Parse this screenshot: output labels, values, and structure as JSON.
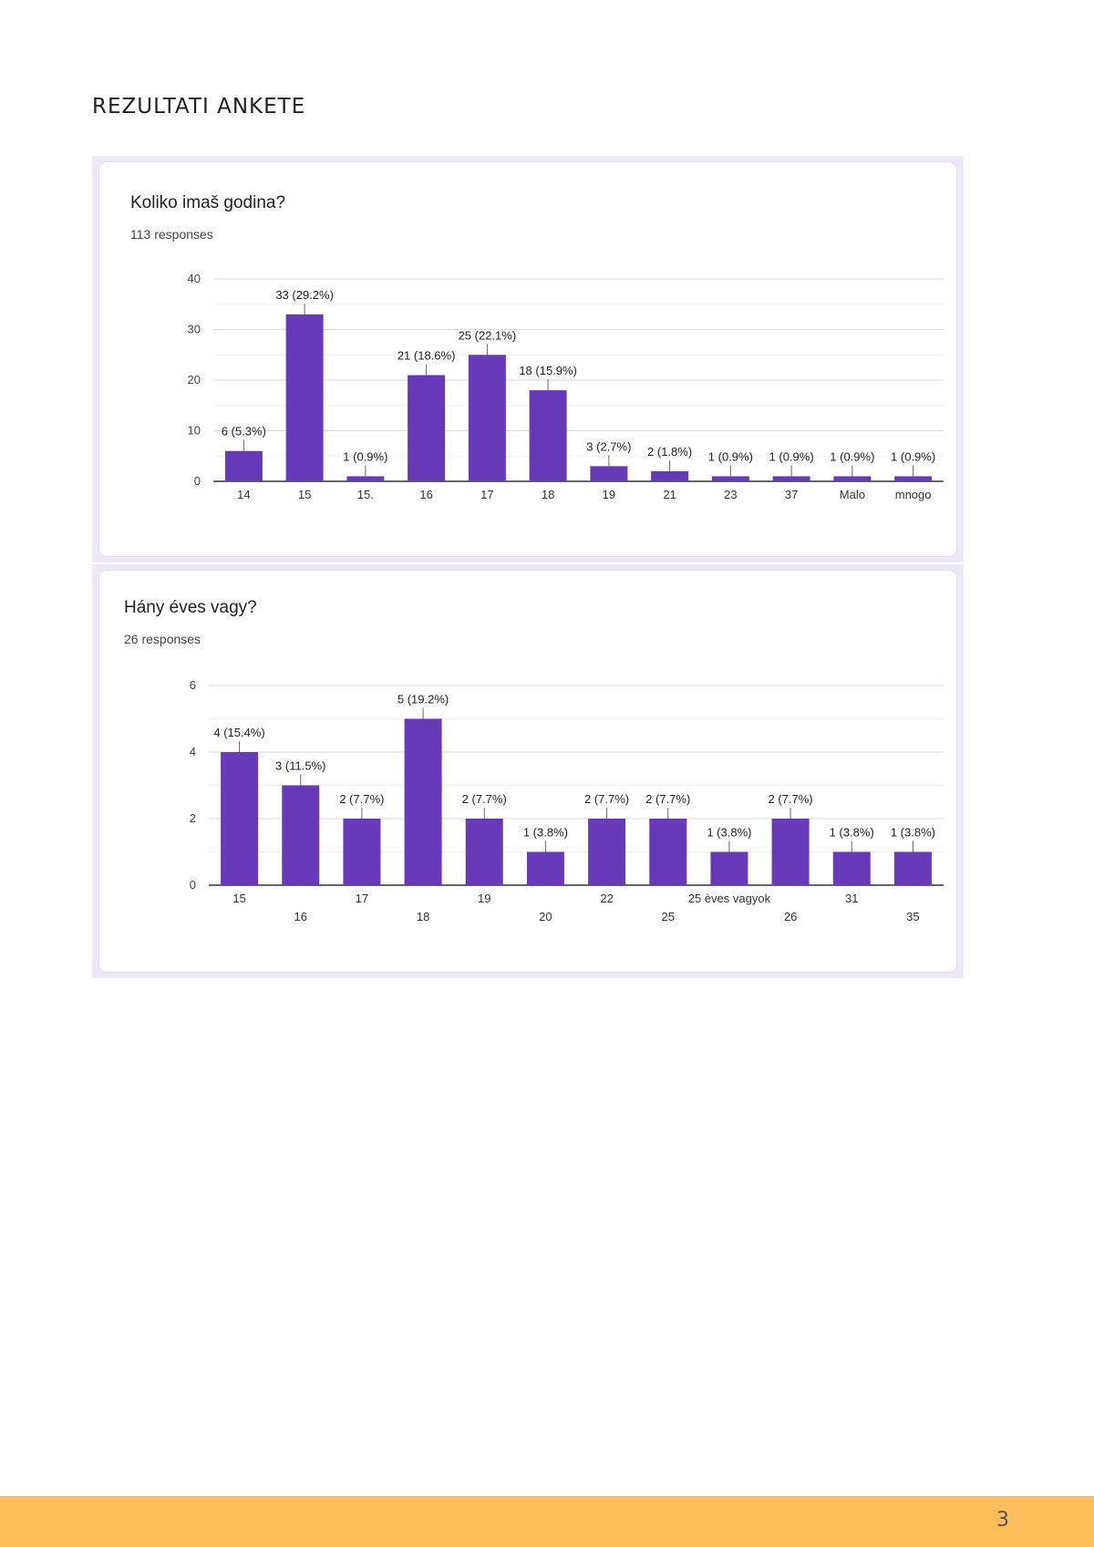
{
  "page": {
    "heading": "REZULTATI ANKETE",
    "page_number": "3",
    "accent_color": "#673ab7",
    "footer_color": "#ffbe5c"
  },
  "chart_data": [
    {
      "type": "bar",
      "title": "Koliko imaš godina?",
      "subtitle": "113 responses",
      "categories": [
        "14",
        "15",
        "15.",
        "16",
        "17",
        "18",
        "19",
        "21",
        "23",
        "37",
        "Malo",
        "mnogo"
      ],
      "values": [
        6,
        33,
        1,
        21,
        25,
        18,
        3,
        2,
        1,
        1,
        1,
        1
      ],
      "data_labels": [
        "6 (5.3%)",
        "33 (29.2%)",
        "1 (0.9%)",
        "21 (18.6%)",
        "25 (22.1%)",
        "18 (15.9%)",
        "3 (2.7%)",
        "2 (1.8%)",
        "1 (0.9%)",
        "1 (0.9%)",
        "1 (0.9%)",
        "1 (0.9%)"
      ],
      "y_ticks": [
        0,
        10,
        20,
        30,
        40
      ],
      "ylim": [
        0,
        40
      ],
      "grid": true,
      "color": "#673ab7"
    },
    {
      "type": "bar",
      "title": "Hány éves vagy?",
      "subtitle": "26 responses",
      "categories": [
        "15",
        "16",
        "17",
        "18",
        "19",
        "20",
        "22",
        "25",
        "25 èves vagyok",
        "26",
        "31",
        "35"
      ],
      "values": [
        4,
        3,
        2,
        5,
        2,
        1,
        2,
        2,
        1,
        2,
        1,
        1
      ],
      "data_labels": [
        "4 (15.4%)",
        "3 (11.5%)",
        "2 (7.7%)",
        "5 (19.2%)",
        "2 (7.7%)",
        "1 (3.8%)",
        "2 (7.7%)",
        "2 (7.7%)",
        "1 (3.8%)",
        "2 (7.7%)",
        "1 (3.8%)",
        "1 (3.8%)"
      ],
      "y_ticks": [
        0,
        2,
        4,
        6
      ],
      "ylim": [
        0,
        6
      ],
      "grid": true,
      "color": "#673ab7"
    }
  ]
}
